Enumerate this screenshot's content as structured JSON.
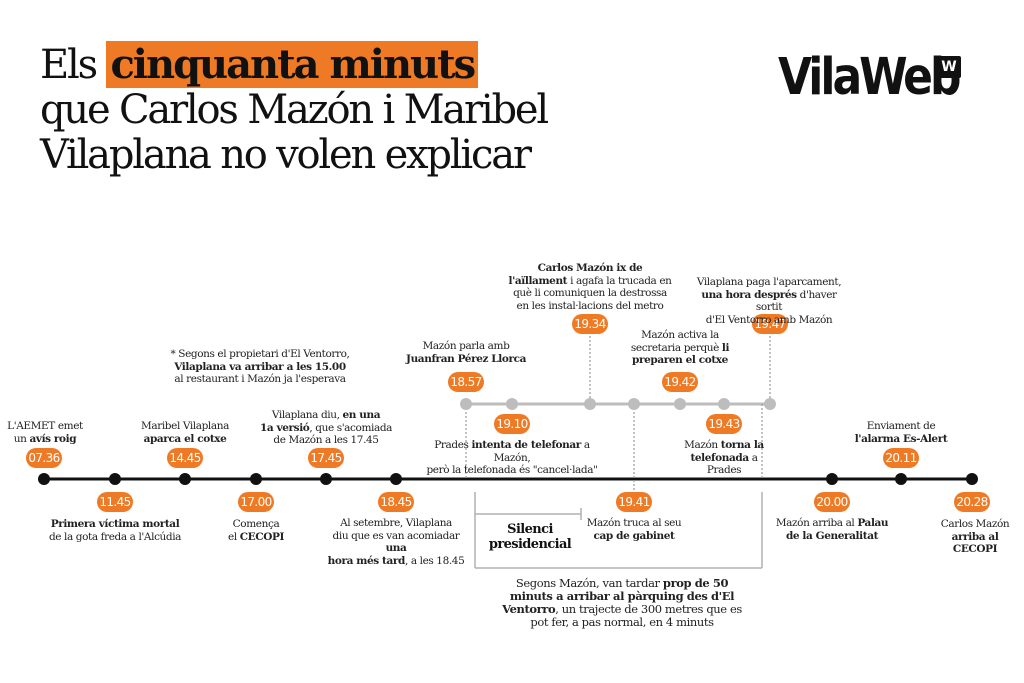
{
  "title": {
    "part1": "Els ",
    "highlight": "cinquanta minuts",
    "line2": "que Carlos Mazón i Maribel",
    "line3": "Vilaplana no volen explicar"
  },
  "logo": {
    "text": "VilaWeb",
    "badge": "W"
  },
  "colors": {
    "accent": "#ee7a26",
    "main_line": "#111111",
    "branch_line": "#bdbdbd",
    "bracket": "#b0b0b0"
  },
  "footnote": {
    "line1": "* Segons el propietari d'El Ventorro,",
    "line2_bold": "Vilaplana va arribar a les 15.00",
    "line3": "al restaurant i Mazón ja l'esperava"
  },
  "events": {
    "e0736": {
      "time": "07.36",
      "l1": "L'AEMET emet",
      "l2a": "un ",
      "l2b": "avís roig"
    },
    "e1145": {
      "time": "11.45",
      "l1": "Primera víctima mortal",
      "l2": "de la gota freda a l'Alcúdia"
    },
    "e1445": {
      "time": "14.45",
      "l1": "Maribel Vilaplana",
      "l2": "aparca el cotxe"
    },
    "e1700": {
      "time": "17.00",
      "l1": "Comença",
      "l2a": "el ",
      "l2b": "CECOPI"
    },
    "e1745": {
      "time": "17.45",
      "l1a": "Vilaplana diu, ",
      "l1b": "en una",
      "l2a": "1a versió",
      "l2b": ", que s'acomiada",
      "l3": "de Mazón a les 17.45"
    },
    "e1845": {
      "time": "18.45",
      "l1": "Al setembre, Vilaplana",
      "l2a": "diu que es van acomiadar ",
      "l2b": "una",
      "l3a": "hora més tard",
      "l3b": ", a les 18.45"
    },
    "e1857": {
      "time": "18.57",
      "l1": "Mazón parla amb",
      "l2": "Juanfran Pérez Llorca"
    },
    "e1910": {
      "time": "19.10",
      "l1a": "Prades ",
      "l1b": "intenta de telefonar",
      "l1c": " a Mazón,",
      "l2": "però la telefonada és \"cancel·lada\""
    },
    "e1934": {
      "time": "19.34",
      "l1": "Carlos Mazón ix de",
      "l2a": "l'aïllament",
      "l2b": " i agafa la trucada en",
      "l3": "què li comuniquen la destrossa",
      "l4": "en les instal·lacions del metro"
    },
    "e1941": {
      "time": "19.41",
      "l1": "Mazón truca al seu",
      "l2": "cap de gabinet"
    },
    "e1942": {
      "time": "19.42",
      "l1": "Mazón activa la",
      "l2a": "secretaria perquè ",
      "l2b": "li",
      "l3": "preparen el cotxe"
    },
    "e1943": {
      "time": "19.43",
      "l1a": "Mazón ",
      "l1b": "torna la",
      "l2a": "telefonada",
      "l2b": " a Prades"
    },
    "e1947": {
      "time": "19.47",
      "l1": "Vilaplana paga l'aparcament,",
      "l2a": "una hora després",
      "l2b": " d'haver sortit",
      "l3": "d'El Ventorro amb Mazón"
    },
    "e2000": {
      "time": "20.00",
      "l1a": "Mazón arriba al ",
      "l1b": "Palau",
      "l2": "de la Generalitat"
    },
    "e2011": {
      "time": "20.11",
      "l1": "Enviament de",
      "l2": "l'alarma Es-Alert"
    },
    "e2028": {
      "time": "20.28",
      "l1": "Carlos Mazón",
      "l2": "arriba al CECOPI"
    }
  },
  "silenci": {
    "l1": "Silenci",
    "l2": "presidencial"
  },
  "bottom_note": {
    "l1a": "Segons Mazón, van tardar ",
    "l1b": "prop de 50",
    "l2": "minuts a arribar al pàrquing des d'El",
    "l3a": "Ventorro",
    "l3b": ", un trajecte de 300 metres que es",
    "l4": "pot fer, a pas normal, en 4 minuts"
  }
}
